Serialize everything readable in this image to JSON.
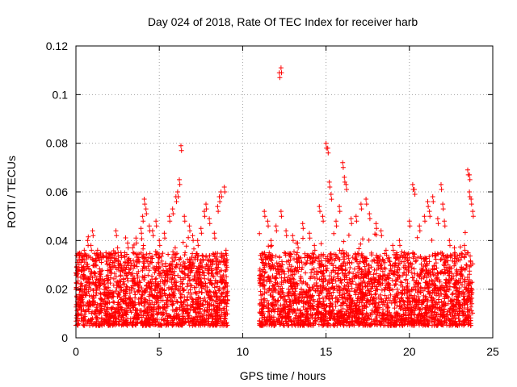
{
  "chart_data": {
    "type": "scatter",
    "title": "Day 024 of 2018, Rate Of TEC Index for receiver harb",
    "xlabel": "GPS time / hours",
    "ylabel": "ROTI / TECUs",
    "xlim": [
      0,
      25
    ],
    "ylim": [
      0,
      0.12
    ],
    "xticks": [
      0,
      5,
      10,
      15,
      20,
      25
    ],
    "xtick_labels": [
      "0",
      "5",
      "10",
      "15",
      "20",
      "25"
    ],
    "yticks": [
      0,
      0.02,
      0.04,
      0.06,
      0.08,
      0.1,
      0.12
    ],
    "ytick_labels": [
      "0",
      "0.02",
      "0.04",
      "0.06",
      "0.08",
      "0.1",
      "0.12"
    ],
    "grid": true,
    "marker": "+",
    "color": "#ff0000",
    "series": [
      {
        "name": "ROTI",
        "segments": [
          {
            "x_range": [
              0.0,
              9.1
            ],
            "typical_range": [
              0.005,
              0.035
            ]
          },
          {
            "x_range": [
              11.0,
              23.8
            ],
            "typical_range": [
              0.005,
              0.035
            ]
          }
        ],
        "points": [
          {
            "x": 0.2,
            "y": 0.034
          },
          {
            "x": 0.3,
            "y": 0.031
          },
          {
            "x": 0.5,
            "y": 0.036
          },
          {
            "x": 0.7,
            "y": 0.04
          },
          {
            "x": 0.9,
            "y": 0.038
          },
          {
            "x": 1.0,
            "y": 0.044
          },
          {
            "x": 1.3,
            "y": 0.036
          },
          {
            "x": 1.5,
            "y": 0.033
          },
          {
            "x": 1.8,
            "y": 0.035
          },
          {
            "x": 2.2,
            "y": 0.031
          },
          {
            "x": 2.4,
            "y": 0.044
          },
          {
            "x": 2.5,
            "y": 0.037
          },
          {
            "x": 2.7,
            "y": 0.035
          },
          {
            "x": 3.1,
            "y": 0.039
          },
          {
            "x": 3.4,
            "y": 0.037
          },
          {
            "x": 3.6,
            "y": 0.041
          },
          {
            "x": 3.9,
            "y": 0.045
          },
          {
            "x": 4.0,
            "y": 0.05
          },
          {
            "x": 4.1,
            "y": 0.057
          },
          {
            "x": 4.2,
            "y": 0.053
          },
          {
            "x": 4.4,
            "y": 0.046
          },
          {
            "x": 4.6,
            "y": 0.044
          },
          {
            "x": 4.8,
            "y": 0.048
          },
          {
            "x": 5.0,
            "y": 0.04
          },
          {
            "x": 5.3,
            "y": 0.043
          },
          {
            "x": 5.6,
            "y": 0.05
          },
          {
            "x": 5.8,
            "y": 0.053
          },
          {
            "x": 6.0,
            "y": 0.058
          },
          {
            "x": 6.1,
            "y": 0.06
          },
          {
            "x": 6.2,
            "y": 0.065
          },
          {
            "x": 6.3,
            "y": 0.079
          },
          {
            "x": 6.5,
            "y": 0.05
          },
          {
            "x": 6.8,
            "y": 0.046
          },
          {
            "x": 7.0,
            "y": 0.042
          },
          {
            "x": 7.3,
            "y": 0.04
          },
          {
            "x": 7.5,
            "y": 0.045
          },
          {
            "x": 7.7,
            "y": 0.052
          },
          {
            "x": 7.8,
            "y": 0.055
          },
          {
            "x": 8.0,
            "y": 0.049
          },
          {
            "x": 8.3,
            "y": 0.043
          },
          {
            "x": 8.5,
            "y": 0.054
          },
          {
            "x": 8.6,
            "y": 0.058
          },
          {
            "x": 8.7,
            "y": 0.06
          },
          {
            "x": 8.9,
            "y": 0.062
          },
          {
            "x": 9.0,
            "y": 0.036
          },
          {
            "x": 11.3,
            "y": 0.052
          },
          {
            "x": 11.5,
            "y": 0.048
          },
          {
            "x": 11.7,
            "y": 0.04
          },
          {
            "x": 12.0,
            "y": 0.046
          },
          {
            "x": 12.2,
            "y": 0.109
          },
          {
            "x": 12.3,
            "y": 0.111
          },
          {
            "x": 12.3,
            "y": 0.052
          },
          {
            "x": 12.6,
            "y": 0.044
          },
          {
            "x": 13.0,
            "y": 0.042
          },
          {
            "x": 13.3,
            "y": 0.039
          },
          {
            "x": 13.6,
            "y": 0.047
          },
          {
            "x": 14.0,
            "y": 0.043
          },
          {
            "x": 14.3,
            "y": 0.038
          },
          {
            "x": 14.6,
            "y": 0.054
          },
          {
            "x": 14.8,
            "y": 0.05
          },
          {
            "x": 15.0,
            "y": 0.08
          },
          {
            "x": 15.1,
            "y": 0.078
          },
          {
            "x": 15.2,
            "y": 0.064
          },
          {
            "x": 15.3,
            "y": 0.059
          },
          {
            "x": 15.6,
            "y": 0.048
          },
          {
            "x": 15.8,
            "y": 0.054
          },
          {
            "x": 16.0,
            "y": 0.072
          },
          {
            "x": 16.1,
            "y": 0.066
          },
          {
            "x": 16.2,
            "y": 0.063
          },
          {
            "x": 16.5,
            "y": 0.049
          },
          {
            "x": 16.8,
            "y": 0.05
          },
          {
            "x": 17.1,
            "y": 0.055
          },
          {
            "x": 17.4,
            "y": 0.057
          },
          {
            "x": 17.6,
            "y": 0.051
          },
          {
            "x": 18.0,
            "y": 0.047
          },
          {
            "x": 18.3,
            "y": 0.044
          },
          {
            "x": 18.6,
            "y": 0.036
          },
          {
            "x": 19.0,
            "y": 0.038
          },
          {
            "x": 19.4,
            "y": 0.04
          },
          {
            "x": 19.7,
            "y": 0.035
          },
          {
            "x": 20.0,
            "y": 0.048
          },
          {
            "x": 20.2,
            "y": 0.063
          },
          {
            "x": 20.3,
            "y": 0.061
          },
          {
            "x": 20.6,
            "y": 0.046
          },
          {
            "x": 20.9,
            "y": 0.05
          },
          {
            "x": 21.1,
            "y": 0.056
          },
          {
            "x": 21.2,
            "y": 0.052
          },
          {
            "x": 21.4,
            "y": 0.058
          },
          {
            "x": 21.7,
            "y": 0.049
          },
          {
            "x": 21.9,
            "y": 0.063
          },
          {
            "x": 22.0,
            "y": 0.055
          },
          {
            "x": 22.1,
            "y": 0.048
          },
          {
            "x": 22.4,
            "y": 0.04
          },
          {
            "x": 22.7,
            "y": 0.037
          },
          {
            "x": 23.0,
            "y": 0.034
          },
          {
            "x": 23.3,
            "y": 0.038
          },
          {
            "x": 23.5,
            "y": 0.069
          },
          {
            "x": 23.6,
            "y": 0.067
          },
          {
            "x": 23.6,
            "y": 0.06
          },
          {
            "x": 23.7,
            "y": 0.057
          },
          {
            "x": 23.8,
            "y": 0.052
          }
        ]
      }
    ]
  }
}
